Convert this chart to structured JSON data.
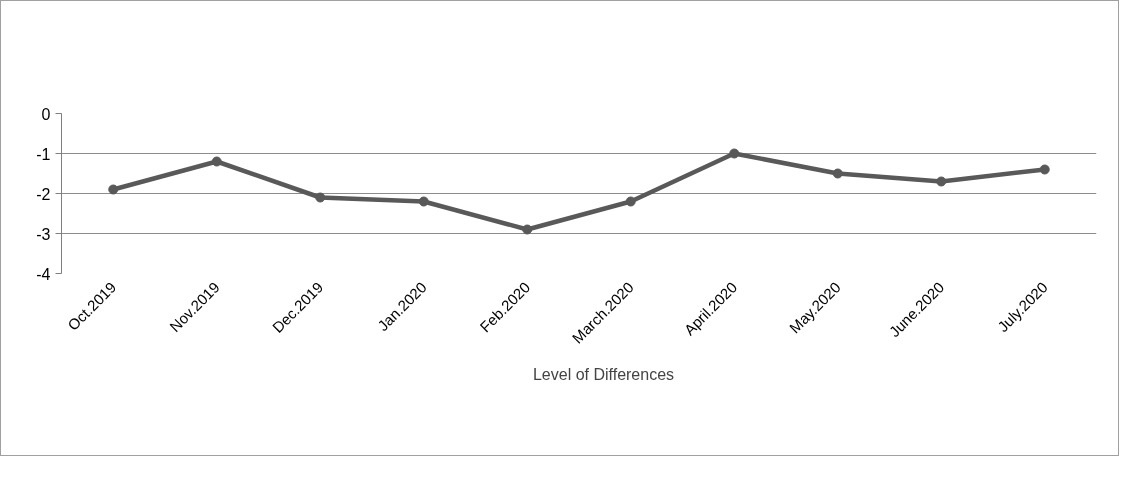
{
  "chart_data": {
    "type": "line",
    "categories": [
      "Oct.2019",
      "Nov.2019",
      "Dec.2019",
      "Jan.2020",
      "Feb.2020",
      "March.2020",
      "April.2020",
      "May.2020",
      "June.2020",
      "July.2020"
    ],
    "series": [
      {
        "name": "Level of Differences",
        "color": "#595959",
        "values": [
          -1.9,
          -1.2,
          -2.1,
          -2.2,
          -2.9,
          -2.2,
          -1.0,
          -1.5,
          -1.7,
          -1.4
        ]
      }
    ],
    "ylim": [
      -4,
      0
    ],
    "yticks": [
      0,
      -1,
      -2,
      -3,
      -4
    ],
    "grid": "y",
    "legend": "bottom",
    "marker": "circle",
    "line_style": "solid"
  }
}
